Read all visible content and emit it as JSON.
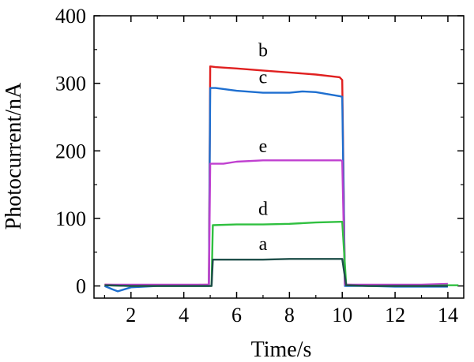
{
  "chart_data": {
    "type": "line",
    "title": "",
    "xlabel": "Time/s",
    "ylabel": "Photocurrent/nA",
    "xlim": [
      0.6,
      14.6
    ],
    "ylim": [
      -18,
      400
    ],
    "xticks": [
      2,
      4,
      6,
      8,
      10,
      12,
      14
    ],
    "yticks": [
      0,
      100,
      200,
      300,
      400
    ],
    "grid": false,
    "legend": "none",
    "series": [
      {
        "name": "b",
        "color": "#e02020",
        "x": [
          1,
          2,
          4,
          4.95,
          5.0,
          5.2,
          6,
          7,
          8,
          9,
          9.9,
          10.0,
          10.1,
          11,
          12,
          13,
          14
        ],
        "y": [
          2,
          1,
          1,
          2,
          325,
          324,
          322,
          319,
          316,
          313,
          309,
          305,
          2,
          1,
          1,
          1,
          1
        ]
      },
      {
        "name": "c",
        "color": "#1e6fd0",
        "x": [
          1,
          1.3,
          1.5,
          2,
          3,
          4,
          4.95,
          5.0,
          5.2,
          6,
          7,
          8,
          8.5,
          9,
          9.9,
          10.0,
          10.1,
          11,
          12,
          13,
          14
        ],
        "y": [
          0,
          -5,
          -8,
          -2,
          0,
          0,
          0,
          293,
          293,
          289,
          286,
          286,
          288,
          287,
          281,
          280,
          0,
          0,
          -1,
          -1,
          -1
        ]
      },
      {
        "name": "e",
        "color": "#c040d0",
        "x": [
          1,
          2,
          3,
          4,
          4.95,
          5.0,
          5.5,
          6,
          7,
          8,
          9,
          9.95,
          10.0,
          10.1,
          11,
          12,
          13,
          14
        ],
        "y": [
          2,
          2,
          2,
          2,
          2,
          181,
          181,
          184,
          186,
          186,
          186,
          186,
          185,
          2,
          2,
          2,
          2,
          3
        ]
      },
      {
        "name": "d",
        "color": "#30c040",
        "x": [
          1,
          2,
          3,
          4,
          5.05,
          5.1,
          6,
          7,
          8,
          9,
          9.95,
          10.0,
          10.15,
          11,
          12,
          13,
          14,
          14.4
        ],
        "y": [
          1,
          0,
          0,
          0,
          0,
          90,
          91,
          91,
          92,
          94,
          95,
          95,
          1,
          0,
          0,
          0,
          1,
          1
        ]
      },
      {
        "name": "a",
        "color": "#1f4f4a",
        "x": [
          1,
          2,
          3,
          4,
          5.05,
          5.1,
          6,
          7,
          8,
          9,
          9.95,
          10.0,
          10.15,
          11,
          12,
          13,
          14
        ],
        "y": [
          1,
          0,
          0,
          0,
          0,
          39,
          39,
          39,
          40,
          40,
          40,
          40,
          1,
          0,
          0,
          0,
          0
        ]
      }
    ],
    "labels": [
      {
        "text": "b",
        "x": 7.0,
        "y": 340
      },
      {
        "text": "c",
        "x": 7.0,
        "y": 300
      },
      {
        "text": "e",
        "x": 7.0,
        "y": 198
      },
      {
        "text": "d",
        "x": 7.0,
        "y": 105
      },
      {
        "text": "a",
        "x": 7.0,
        "y": 53
      }
    ]
  }
}
